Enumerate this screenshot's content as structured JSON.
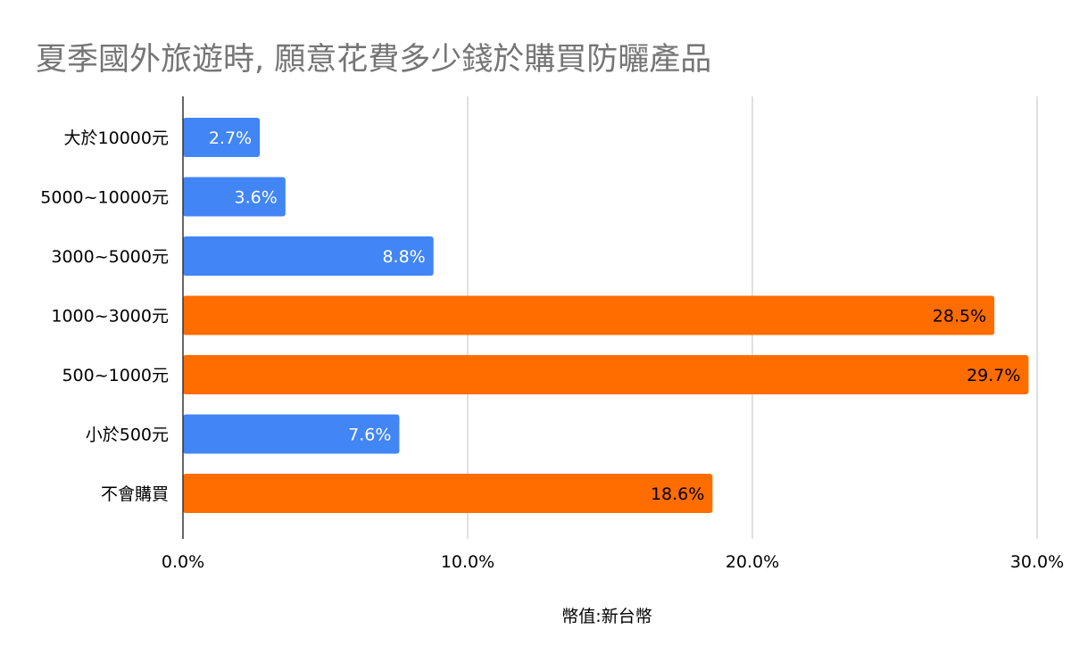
{
  "chart_data": {
    "type": "bar",
    "orientation": "horizontal",
    "title": "夏季國外旅遊時, 願意花費多少錢於購買防曬產品",
    "xlabel": "幣值:新台幣",
    "ylabel": "",
    "categories": [
      "大於10000元",
      "5000~10000元",
      "3000~5000元",
      "1000~3000元",
      "500~1000元",
      "小於500元",
      "不會購買"
    ],
    "values": [
      2.7,
      3.6,
      8.8,
      28.5,
      29.7,
      7.6,
      18.6
    ],
    "value_labels": [
      "2.7%",
      "3.6%",
      "8.8%",
      "28.5%",
      "29.7%",
      "7.6%",
      "18.6%"
    ],
    "bar_colors": [
      "#4285f4",
      "#4285f4",
      "#4285f4",
      "#ff6d01",
      "#ff6d01",
      "#4285f4",
      "#ff6d01"
    ],
    "label_colors": [
      "#ffffff",
      "#ffffff",
      "#ffffff",
      "#000000",
      "#000000",
      "#ffffff",
      "#000000"
    ],
    "xlim": [
      0,
      30
    ],
    "x_ticks": [
      0,
      10,
      20,
      30
    ],
    "x_tick_labels": [
      "0.0%",
      "10.0%",
      "20.0%",
      "30.0%"
    ],
    "grid": true,
    "legend": "none"
  }
}
